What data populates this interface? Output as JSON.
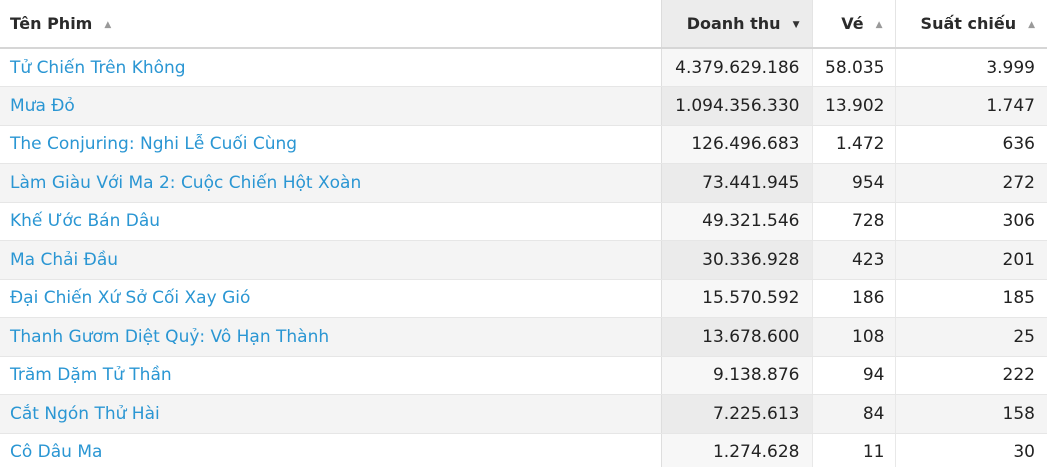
{
  "table": {
    "headers": {
      "title": "Tên Phim",
      "revenue": "Doanh thu",
      "tickets": "Vé",
      "showings": "Suất chiếu"
    },
    "sort": {
      "column": "revenue",
      "direction": "descending",
      "title_arrow": "▲",
      "revenue_arrow": "▼",
      "tickets_arrow": "▲",
      "showings_arrow": "▲"
    },
    "rows": [
      {
        "title": "Tử Chiến Trên Không",
        "revenue": "4.379.629.186",
        "tickets": "58.035",
        "showings": "3.999"
      },
      {
        "title": "Mưa Đỏ",
        "revenue": "1.094.356.330",
        "tickets": "13.902",
        "showings": "1.747"
      },
      {
        "title": "The Conjuring: Nghi Lễ Cuối Cùng",
        "revenue": "126.496.683",
        "tickets": "1.472",
        "showings": "636"
      },
      {
        "title": "Làm Giàu Với Ma 2: Cuộc Chiến Hột Xoàn",
        "revenue": "73.441.945",
        "tickets": "954",
        "showings": "272"
      },
      {
        "title": "Khế Ước Bán Dâu",
        "revenue": "49.321.546",
        "tickets": "728",
        "showings": "306"
      },
      {
        "title": "Ma Chải Đầu",
        "revenue": "30.336.928",
        "tickets": "423",
        "showings": "201"
      },
      {
        "title": "Đại Chiến Xứ Sở Cối Xay Gió",
        "revenue": "15.570.592",
        "tickets": "186",
        "showings": "185"
      },
      {
        "title": "Thanh Gươm Diệt Quỷ: Vô Hạn Thành",
        "revenue": "13.678.600",
        "tickets": "108",
        "showings": "25"
      },
      {
        "title": "Trăm Dặm Tử Thần",
        "revenue": "9.138.876",
        "tickets": "94",
        "showings": "222"
      },
      {
        "title": "Cắt Ngón Thử Hài",
        "revenue": "7.225.613",
        "tickets": "84",
        "showings": "158"
      },
      {
        "title": "Cô Dâu Ma",
        "revenue": "1.274.628",
        "tickets": "11",
        "showings": "30"
      }
    ]
  },
  "colors": {
    "link": "#2a96d3",
    "sorted_column_bg": "#ececec",
    "stripe_bg": "#f4f4f4"
  }
}
